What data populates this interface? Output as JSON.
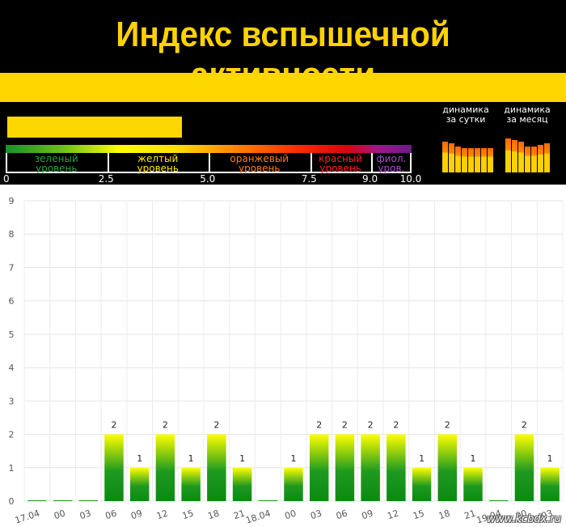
{
  "header": {
    "title": "Индекс вспышечной активности",
    "current_index_fraction": 0.43,
    "scale": {
      "levels": [
        {
          "label1": "зеленый",
          "label2": "уровень",
          "color": "#2aa53a"
        },
        {
          "label1": "желтый",
          "label2": "уровень",
          "color": "#ffe600"
        },
        {
          "label1": "оранжевый",
          "label2": "уровень",
          "color": "#ff7a1a"
        },
        {
          "label1": "красный",
          "label2": "уровень",
          "color": "#ff2020"
        },
        {
          "label1": "фиол.",
          "label2": "уров.",
          "color": "#b04bd0"
        }
      ],
      "ticks": [
        "0",
        "2.5",
        "5.0",
        "7.5",
        "9.0",
        "10.0"
      ]
    },
    "dynamics": {
      "day_label1": "динамика",
      "day_label2": "за сутки",
      "month_label1": "динамика",
      "month_label2": "за месяц",
      "day_values": [
        1.9,
        1.8,
        1.6,
        1.5,
        1.5,
        1.5,
        1.5,
        1.5
      ],
      "month_values": [
        2.1,
        2.0,
        1.9,
        1.6,
        1.6,
        1.7,
        1.8
      ]
    }
  },
  "chart_data": {
    "type": "bar",
    "categories": [
      "17.04",
      "00",
      "03",
      "06",
      "09",
      "12",
      "15",
      "18",
      "21",
      "18.04",
      "00",
      "03",
      "06",
      "09",
      "12",
      "15",
      "18",
      "21",
      "19.04",
      "00",
      "03"
    ],
    "values": [
      0,
      0,
      0,
      2,
      1,
      2,
      1,
      2,
      1,
      0,
      1,
      2,
      2,
      2,
      2,
      1,
      2,
      1,
      0,
      2,
      1
    ],
    "ylim": [
      0,
      9
    ],
    "yticks": [
      "0",
      "1",
      "2",
      "3",
      "4",
      "5",
      "6",
      "7",
      "8",
      "9"
    ],
    "grid": true,
    "value_labels": true
  },
  "watermark": "www.kcbdx.ru"
}
